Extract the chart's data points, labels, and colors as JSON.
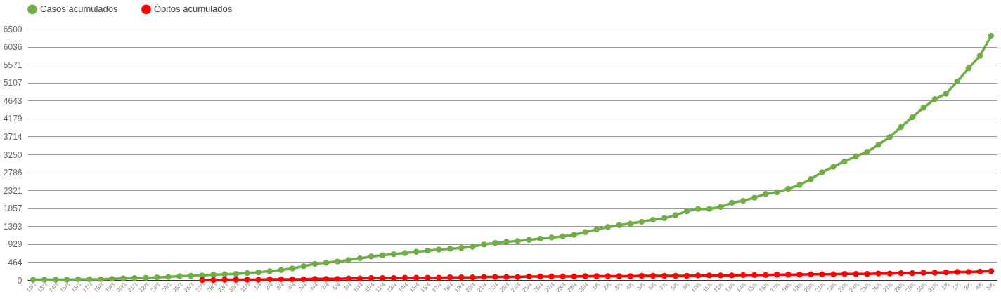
{
  "chart_data": {
    "type": "line",
    "categories": [
      "12/3",
      "13/3",
      "14/3",
      "15/3",
      "16/3",
      "17/3",
      "18/3",
      "19/3",
      "20/3",
      "21/3",
      "22/3",
      "23/3",
      "24/3",
      "25/3",
      "26/3",
      "27/3",
      "28/3",
      "29/3",
      "30/3",
      "31/3",
      "1/4",
      "2/4",
      "3/4",
      "4/4",
      "5/4",
      "6/4",
      "7/4",
      "8/4",
      "9/4",
      "10/4",
      "11/4",
      "12/4",
      "13/4",
      "14/4",
      "15/4",
      "16/4",
      "17/4",
      "18/4",
      "19/4",
      "20/4",
      "21/4",
      "22/4",
      "23/4",
      "24/4",
      "25/4",
      "26/4",
      "27/4",
      "28/4",
      "29/4",
      "30/4",
      "1/5",
      "2/5",
      "3/5",
      "4/5",
      "5/5",
      "6/5",
      "7/5",
      "8/5",
      "9/5",
      "10/5",
      "11/5",
      "12/5",
      "13/5",
      "14/5",
      "15/5",
      "16/5",
      "17/5",
      "18/5",
      "19/5",
      "20/5",
      "21/5",
      "22/5",
      "23/5",
      "24/5",
      "25/5",
      "26/5",
      "27/5",
      "28/5",
      "29/5",
      "30/5",
      "31/5",
      "1/6",
      "2/6",
      "3/6",
      "4/6",
      "5/6"
    ],
    "series": [
      {
        "name": "Casos acumulados",
        "color": "#70ad47",
        "values": [
          10,
          10,
          10,
          10,
          20,
          20,
          20,
          30,
          40,
          50,
          60,
          70,
          80,
          100,
          110,
          120,
          140,
          150,
          160,
          180,
          200,
          230,
          260,
          300,
          360,
          420,
          450,
          480,
          520,
          560,
          610,
          640,
          670,
          700,
          730,
          760,
          790,
          810,
          830,
          860,
          920,
          960,
          990,
          1010,
          1040,
          1070,
          1100,
          1130,
          1170,
          1240,
          1310,
          1370,
          1420,
          1460,
          1510,
          1560,
          1600,
          1680,
          1780,
          1840,
          1840,
          1890,
          2000,
          2050,
          2130,
          2230,
          2270,
          2360,
          2460,
          2610,
          2790,
          2930,
          3070,
          3200,
          3320,
          3500,
          3700,
          3960,
          4210,
          4460,
          4680,
          4820,
          5140,
          5480,
          5800,
          6320
        ]
      },
      {
        "name": "Óbitos acumulados",
        "color": "#ff0000",
        "values": [
          null,
          null,
          null,
          null,
          null,
          null,
          null,
          null,
          null,
          null,
          null,
          null,
          null,
          null,
          null,
          0,
          0,
          10,
          10,
          10,
          10,
          20,
          20,
          20,
          20,
          30,
          30,
          30,
          40,
          40,
          50,
          50,
          50,
          60,
          60,
          60,
          60,
          70,
          70,
          70,
          80,
          80,
          80,
          80,
          90,
          90,
          90,
          90,
          90,
          100,
          100,
          100,
          100,
          100,
          110,
          110,
          110,
          110,
          110,
          120,
          120,
          120,
          120,
          130,
          130,
          130,
          140,
          140,
          140,
          150,
          150,
          150,
          160,
          160,
          160,
          170,
          170,
          180,
          180,
          190,
          190,
          200,
          210,
          210,
          220,
          230
        ]
      }
    ],
    "ylim": [
      0,
      6500
    ],
    "yticks": [
      0,
      464,
      929,
      1393,
      1857,
      2321,
      2786,
      3250,
      3714,
      4179,
      4643,
      5107,
      5571,
      6036,
      6500
    ],
    "grid": "y",
    "legend": "top",
    "marker": "circle",
    "line_style": "solid"
  }
}
